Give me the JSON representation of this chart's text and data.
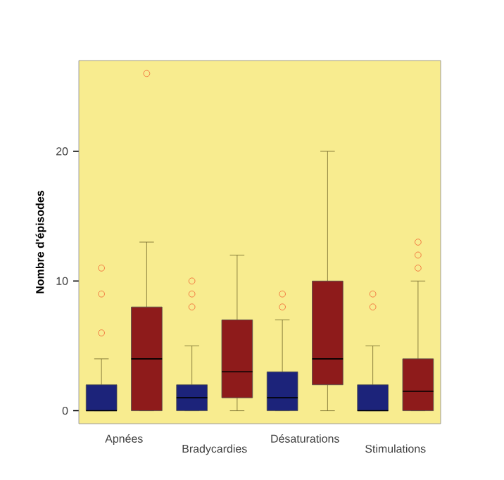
{
  "chart_data": {
    "type": "box",
    "ylabel": "Nombre d'épisodes",
    "categories": [
      "Apnées",
      "Bradycardies",
      "Désaturations",
      "Stimulations"
    ],
    "ylim": [
      -1,
      27
    ],
    "yticks": [
      0,
      10,
      20
    ],
    "grid": false,
    "series": [
      {
        "color": "#1c237a",
        "boxes": [
          {
            "low": 0,
            "q1": 0,
            "median": 0,
            "q3": 2,
            "high": 4,
            "outliers": [
              6,
              9,
              11
            ]
          },
          {
            "low": 0,
            "q1": 0,
            "median": 1,
            "q3": 2,
            "high": 5,
            "outliers": [
              8,
              9,
              10
            ]
          },
          {
            "low": 0,
            "q1": 0,
            "median": 1,
            "q3": 3,
            "high": 7,
            "outliers": [
              8,
              9
            ]
          },
          {
            "low": 0,
            "q1": 0,
            "median": 0,
            "q3": 2,
            "high": 5,
            "outliers": [
              8,
              9
            ]
          }
        ]
      },
      {
        "color": "#8e1b1b",
        "boxes": [
          {
            "low": 0,
            "q1": 0,
            "median": 4,
            "q3": 8,
            "high": 13,
            "outliers": [
              26
            ]
          },
          {
            "low": 0,
            "q1": 1,
            "median": 3,
            "q3": 7,
            "high": 12
          },
          {
            "low": 0,
            "q1": 2,
            "median": 4,
            "q3": 10,
            "high": 20
          },
          {
            "low": 0,
            "q1": 0,
            "median": 1.5,
            "q3": 4,
            "high": 10,
            "outliers": [
              11,
              12,
              13
            ]
          }
        ]
      }
    ]
  }
}
